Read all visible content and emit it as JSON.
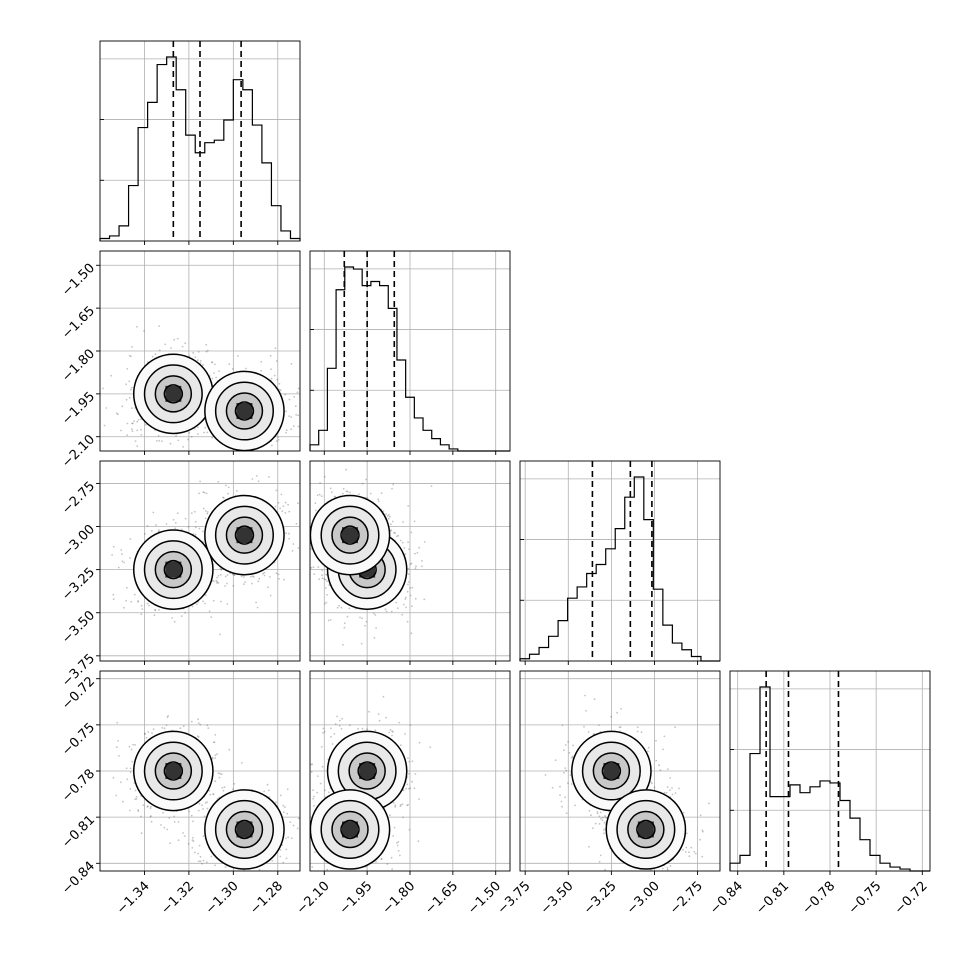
{
  "chart_data": {
    "type": "corner",
    "grid": true,
    "parameters": [
      {
        "range": [
          -1.36,
          -1.27
        ],
        "ticks": [
          -1.34,
          -1.32,
          -1.3,
          -1.28
        ],
        "tick_labels": [
          "−1.34",
          "−1.32",
          "−1.30",
          "−1.28"
        ],
        "quantiles": [
          -1.327,
          -1.315,
          -1.2965
        ]
      },
      {
        "range": [
          -2.15,
          -1.45
        ],
        "ticks": [
          -2.1,
          -1.95,
          -1.8,
          -1.65,
          -1.5
        ],
        "tick_labels": [
          "−2.10",
          "−1.95",
          "−1.80",
          "−1.65",
          "−1.50"
        ],
        "quantiles": [
          -2.03,
          -1.95,
          -1.855
        ]
      },
      {
        "range": [
          -3.78,
          -2.62
        ],
        "ticks": [
          -3.75,
          -3.5,
          -3.25,
          -3.0,
          -2.75
        ],
        "tick_labels": [
          "−3.75",
          "−3.50",
          "−3.25",
          "−3.00",
          "−2.75"
        ],
        "quantiles": [
          -3.36,
          -3.14,
          -3.015
        ]
      },
      {
        "range": [
          -0.845,
          -0.715
        ],
        "ticks": [
          -0.84,
          -0.81,
          -0.78,
          -0.75,
          -0.72
        ],
        "tick_labels": [
          "−0.84",
          "−0.81",
          "−0.78",
          "−0.75",
          "−0.72"
        ],
        "quantiles": [
          -0.8215,
          -0.807,
          -0.7745
        ]
      }
    ],
    "row_ytick_labels": [
      [
        "−1.50",
        "−1.65",
        "−1.80",
        "−1.95",
        "−2.10"
      ],
      [
        "−2.75",
        "−3.00",
        "−3.25",
        "−3.50",
        "−3.75"
      ],
      [
        "−0.72",
        "−0.75",
        "−0.78",
        "−0.81",
        "−0.84"
      ]
    ],
    "histograms": [
      {
        "param": 0,
        "edges_range": [
          -1.36,
          -1.27
        ],
        "counts": [
          1,
          2,
          6,
          22,
          45,
          55,
          70,
          73,
          60,
          42,
          35,
          39,
          40,
          48,
          64,
          60,
          46,
          31,
          14,
          4,
          1
        ]
      },
      {
        "param": 1,
        "edges_range": [
          -2.15,
          -1.45
        ],
        "counts": [
          3,
          10,
          40,
          78,
          89,
          88,
          80,
          82,
          80,
          69,
          44,
          26,
          16,
          10,
          6,
          3,
          1,
          0,
          0,
          0,
          0,
          0,
          0
        ]
      },
      {
        "param": 2,
        "edges_range": [
          -3.78,
          -2.62
        ],
        "counts": [
          1,
          3,
          6,
          11,
          18,
          28,
          33,
          39,
          43,
          50,
          59,
          73,
          82,
          63,
          32,
          16,
          8,
          5,
          2,
          0,
          0
        ]
      },
      {
        "param": 3,
        "edges_range": [
          -0.845,
          -0.715
        ],
        "counts": [
          4,
          8,
          60,
          94,
          38,
          38,
          44,
          40,
          43,
          46,
          45,
          36,
          27,
          16,
          8,
          4,
          2,
          1,
          0,
          0
        ]
      }
    ],
    "modes": [
      {
        "center": [
          -1.327,
          -1.95,
          -3.25,
          -0.78
        ],
        "weight": 0.5
      },
      {
        "center": [
          -1.295,
          -2.01,
          -3.05,
          -0.818
        ],
        "weight": 0.5
      }
    ]
  }
}
